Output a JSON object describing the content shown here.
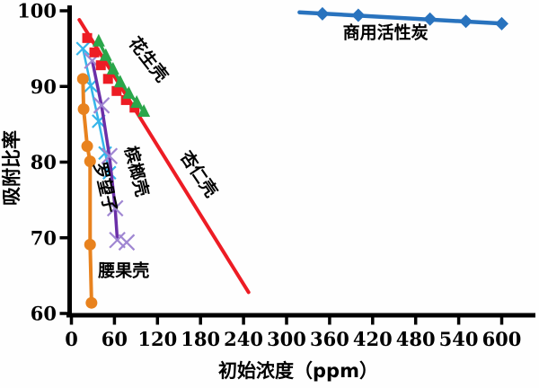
{
  "chart_data": {
    "type": "line",
    "title": "",
    "xlabel": "初始浓度（ppm）",
    "ylabel": "吸附比率",
    "xlim": [
      0,
      645
    ],
    "ylim": [
      60,
      100.8
    ],
    "x_ticks": [
      0,
      60,
      120,
      180,
      240,
      300,
      360,
      420,
      480,
      540,
      600
    ],
    "y_ticks": [
      60,
      70,
      80,
      90,
      100
    ],
    "grid": false,
    "legend": "inline-annotations",
    "axis_color": "#000000",
    "series": [
      {
        "id": "tamarind",
        "name": "罗望子",
        "color": "#35b5ea",
        "marker": "x",
        "marker_color": "#35b5ea",
        "marker_size": 14,
        "line_width": 2.5,
        "x": [
          16,
          27,
          38,
          47,
          53
        ],
        "y": [
          95.0,
          90.1,
          85.4,
          81.2,
          78.6
        ]
      },
      {
        "id": "betel-nut-shell",
        "name": "槟榔壳",
        "color": "#6b2fa8",
        "marker": "x",
        "marker_color": "#9f86d2",
        "marker_size": 17,
        "line_width": 3.5,
        "line_points": 5,
        "x": [
          29,
          42,
          53,
          61,
          64,
          77
        ],
        "y": [
          93.4,
          87.5,
          80.8,
          73.9,
          69.7,
          69.4
        ]
      },
      {
        "id": "cashew-shell",
        "name": "腰果壳",
        "color": "#e8821e",
        "marker": "circle",
        "marker_color": "#e8821e",
        "marker_size": 13,
        "line_width": 4,
        "x": [
          16,
          17,
          22,
          26,
          26,
          28
        ],
        "y": [
          91.0,
          87.0,
          82.1,
          80.1,
          69.1,
          61.4
        ]
      },
      {
        "id": "almond-shell",
        "name": "杏仁壳",
        "color": "#ed1c24",
        "marker": "square",
        "marker_color": "#ed1c24",
        "marker_size": 11,
        "line_width": 4,
        "connect": false,
        "trend_line": {
          "x": [
            11,
            247
          ],
          "y": [
            98.8,
            62.8
          ]
        },
        "x": [
          22,
          32,
          41,
          51,
          63,
          76,
          88
        ],
        "y": [
          96.4,
          94.5,
          92.8,
          91.0,
          89.4,
          88.2,
          87.2
        ]
      },
      {
        "id": "peanut-shell",
        "name": "花生壳",
        "color": "#2aa64a",
        "marker": "triangle",
        "marker_color": "#2aa64a",
        "marker_size": 14,
        "line_width": 3.5,
        "x": [
          38,
          48,
          58,
          68,
          80,
          91,
          101
        ],
        "y": [
          96.0,
          94.1,
          92.3,
          90.6,
          89.1,
          87.9,
          86.7
        ]
      },
      {
        "id": "commercial-activated-carbon",
        "name": "商用活性炭",
        "color": "#2973be",
        "marker": "diamond",
        "marker_color": "#2973be",
        "marker_size": 15,
        "line_width": 4.5,
        "connect": false,
        "trend_line": {
          "x": [
            318,
            602
          ],
          "y": [
            99.8,
            98.3
          ]
        },
        "x": [
          350,
          400,
          500,
          550,
          600
        ],
        "y": [
          99.6,
          99.4,
          98.9,
          98.6,
          98.3
        ]
      }
    ],
    "annotations": [
      {
        "text": "花生壳",
        "x": 101,
        "y": 93.1,
        "rotate": 52
      },
      {
        "text": "杏仁壳",
        "x": 171,
        "y": 78.0,
        "rotate": 56
      },
      {
        "text": "槟榔壳",
        "x": 83,
        "y": 78.6,
        "rotate": 76
      },
      {
        "text": "罗望子",
        "x": 39.5,
        "y": 76.5,
        "rotate": 77
      },
      {
        "text": "腰果壳",
        "x": 73,
        "y": 64.9,
        "rotate": 0
      },
      {
        "text": "商用活性炭",
        "x": 438,
        "y": 96.4,
        "rotate": 0
      }
    ]
  }
}
